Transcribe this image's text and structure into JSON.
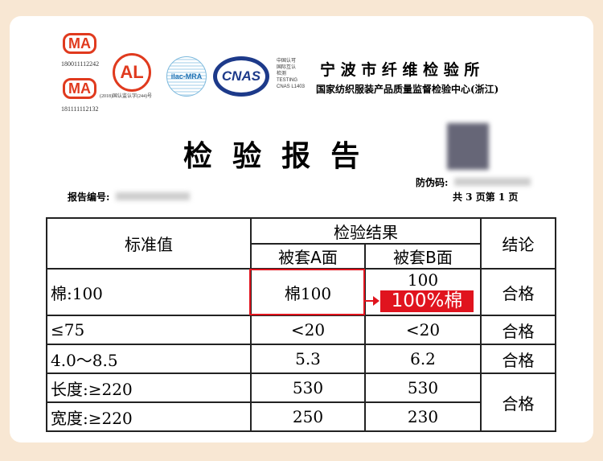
{
  "logos": {
    "cma1_number": "180011112242",
    "cma2_number": "181111112132",
    "cal_caption": "(2018)国认监认字(244)号",
    "cma_text": "MA",
    "cal_text": "AL",
    "ilac_text": "ilac-MRA",
    "cnas_text": "CNAS",
    "cnas_caption": [
      "中国认可",
      "国际互认",
      "检测",
      "TESTING",
      "CNAS L1403"
    ]
  },
  "org": {
    "name": "宁 波 市 纤 维 检 验 所",
    "subtitle": "国家纺织服装产品质量监督检验中心(浙江)"
  },
  "title": "检  验  报  告",
  "anti_fake_label": "防伪码:",
  "report_no_label": "报告编号:",
  "page_info": "共 3 页第 1 页",
  "table": {
    "headers": {
      "standard": "标准值",
      "results": "检验结果",
      "side_a": "被套A面",
      "side_b": "被套B面",
      "conclusion": "结论"
    },
    "rows": [
      {
        "standard": "棉:100",
        "a": "棉100",
        "b": "100",
        "conclusion": "合格"
      },
      {
        "standard": "≤75",
        "a": "<20",
        "b": "<20",
        "conclusion": "合格"
      },
      {
        "standard": "4.0～8.5",
        "a": "5.3",
        "b": "6.2",
        "conclusion": "合格"
      },
      {
        "standard": "长度:≥220",
        "a": "530",
        "b": "530",
        "conclusion": "合格"
      },
      {
        "standard": "宽度:≥220",
        "a": "250",
        "b": "230"
      }
    ]
  },
  "annotation": {
    "label": "100%棉",
    "color": "#e0141e"
  }
}
